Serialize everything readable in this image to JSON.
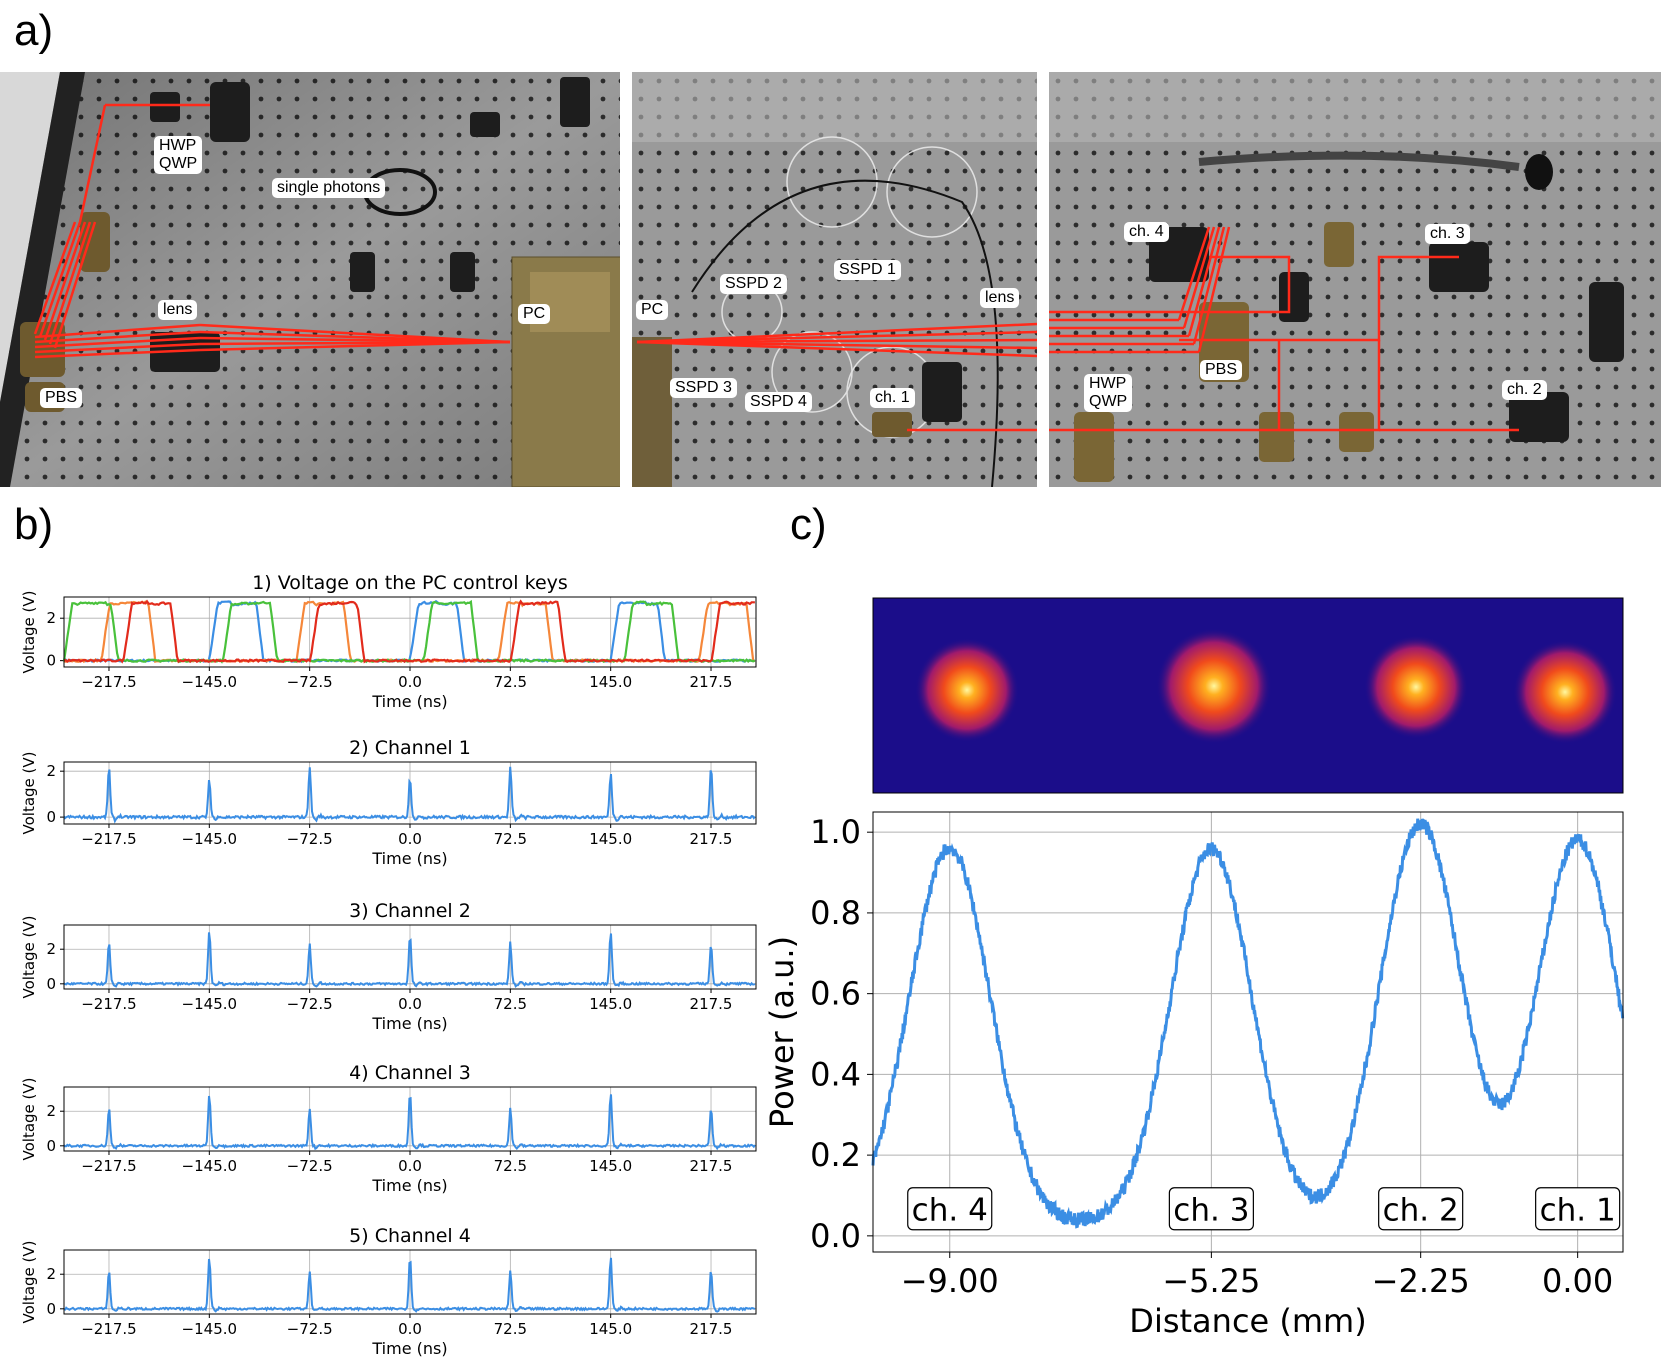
{
  "panel_a": {
    "letter": "a)",
    "labels": [
      {
        "id": "hwp-qwp-1",
        "text": "HWP\nQWP"
      },
      {
        "id": "single-photons",
        "text": "single photons"
      },
      {
        "id": "lens-1",
        "text": "lens"
      },
      {
        "id": "pc-1",
        "text": "PC"
      },
      {
        "id": "pbs-1",
        "text": "PBS"
      },
      {
        "id": "pc-2",
        "text": "PC"
      },
      {
        "id": "sspd-2",
        "text": "SSPD 2"
      },
      {
        "id": "sspd-1",
        "text": "SSPD 1"
      },
      {
        "id": "lens-2",
        "text": "lens"
      },
      {
        "id": "sspd-3",
        "text": "SSPD 3"
      },
      {
        "id": "sspd-4",
        "text": "SSPD 4"
      },
      {
        "id": "ch1-a",
        "text": "ch. 1"
      },
      {
        "id": "ch4-a",
        "text": "ch. 4"
      },
      {
        "id": "ch3-a",
        "text": "ch. 3"
      },
      {
        "id": "pbs-2",
        "text": "PBS"
      },
      {
        "id": "hwp-qwp-2",
        "text": "HWP\nQWP"
      },
      {
        "id": "ch2-a",
        "text": "ch. 2"
      }
    ]
  },
  "panel_b": {
    "letter": "b)"
  },
  "panel_c": {
    "letter": "c)"
  },
  "colors": {
    "blue": "#3b8ee4",
    "orange": "#f5873a",
    "green": "#49c13b",
    "red": "#e22b1c",
    "beam": "#ff2a1a",
    "grid": "#b0b0b0",
    "heat_bg": "#1b0d8a"
  },
  "chart_data": [
    {
      "type": "line",
      "title": "1) Voltage on the PC control keys",
      "xlabel": "Time (ns)",
      "ylabel": "Voltage (V)",
      "xlim": [
        -250,
        250
      ],
      "ylim": [
        -0.3,
        3.0
      ],
      "xticks": [
        -217.5,
        -145.0,
        -72.5,
        0.0,
        72.5,
        145.0,
        217.5
      ],
      "xtick_labels": [
        "−217.5",
        "−145.0",
        "−72.5",
        "0.0",
        "72.5",
        "145.0",
        "217.5"
      ],
      "yticks": [
        0,
        2
      ],
      "period_ns": 290,
      "pulse_width_ns": 30,
      "high_level_v": 2.8,
      "series": [
        {
          "color": "blue",
          "rise_times_ns": [
            -145,
            0,
            145
          ]
        },
        {
          "color": "orange",
          "rise_times_ns": [
            -223,
            -82,
            64,
            209
          ]
        },
        {
          "color": "green",
          "rise_times_ns": [
            -250,
            -135,
            10,
            155
          ]
        },
        {
          "color": "red",
          "rise_times_ns": [
            -207,
            -72,
            73,
            218
          ]
        }
      ]
    },
    {
      "type": "line",
      "title": "2) Channel 1",
      "xlabel": "Time (ns)",
      "ylabel": "Voltage (V)",
      "xlim": [
        -250,
        250
      ],
      "ylim": [
        -0.3,
        2.4
      ],
      "yticks": [
        0,
        2
      ],
      "xticks": [
        -217.5,
        -145.0,
        -72.5,
        0.0,
        72.5,
        145.0,
        217.5
      ],
      "xtick_labels": [
        "−217.5",
        "−145.0",
        "−72.5",
        "0.0",
        "72.5",
        "145.0",
        "217.5"
      ],
      "peaks_x": [
        -217.5,
        -145.0,
        -72.5,
        0.0,
        72.5,
        145.0,
        217.5
      ],
      "peaks_y": [
        2.2,
        1.6,
        2.2,
        1.7,
        2.2,
        1.9,
        2.2
      ]
    },
    {
      "type": "line",
      "title": "3) Channel 2",
      "xlabel": "Time (ns)",
      "ylabel": "Voltage (V)",
      "xlim": [
        -250,
        250
      ],
      "ylim": [
        -0.3,
        3.4
      ],
      "yticks": [
        0,
        2
      ],
      "xticks": [
        -217.5,
        -145.0,
        -72.5,
        0.0,
        72.5,
        145.0,
        217.5
      ],
      "xtick_labels": [
        "−217.5",
        "−145.0",
        "−72.5",
        "0.0",
        "72.5",
        "145.0",
        "217.5"
      ],
      "peaks_x": [
        -217.5,
        -145.0,
        -72.5,
        0.0,
        72.5,
        145.0,
        217.5
      ],
      "peaks_y": [
        2.4,
        3.1,
        2.3,
        2.8,
        2.4,
        3.0,
        2.3
      ]
    },
    {
      "type": "line",
      "title": "4) Channel 3",
      "xlabel": "Time (ns)",
      "ylabel": "Voltage (V)",
      "xlim": [
        -250,
        250
      ],
      "ylim": [
        -0.3,
        3.4
      ],
      "yticks": [
        0,
        2
      ],
      "xticks": [
        -217.5,
        -145.0,
        -72.5,
        0.0,
        72.5,
        145.0,
        217.5
      ],
      "xtick_labels": [
        "−217.5",
        "−145.0",
        "−72.5",
        "0.0",
        "72.5",
        "145.0",
        "217.5"
      ],
      "peaks_x": [
        -217.5,
        -145.0,
        -72.5,
        0.0,
        72.5,
        145.0,
        217.5
      ],
      "peaks_y": [
        2.2,
        3.0,
        2.2,
        3.1,
        2.2,
        3.0,
        2.2
      ]
    },
    {
      "type": "line",
      "title": "5) Channel 4",
      "xlabel": "Time (ns)",
      "ylabel": "Voltage (V)",
      "xlim": [
        -250,
        250
      ],
      "ylim": [
        -0.3,
        3.4
      ],
      "yticks": [
        0,
        2
      ],
      "xticks": [
        -217.5,
        -145.0,
        -72.5,
        0.0,
        72.5,
        145.0,
        217.5
      ],
      "xtick_labels": [
        "−217.5",
        "−145.0",
        "−72.5",
        "0.0",
        "72.5",
        "145.0",
        "217.5"
      ],
      "peaks_x": [
        -217.5,
        -145.0,
        -72.5,
        0.0,
        72.5,
        145.0,
        217.5
      ],
      "peaks_y": [
        2.2,
        3.0,
        2.2,
        3.0,
        2.2,
        3.0,
        2.2
      ]
    },
    {
      "type": "line",
      "xlabel": "Distance (mm)",
      "ylabel": "Power (a.u.)",
      "xlim": [
        -10.1,
        0.65
      ],
      "ylim": [
        -0.04,
        1.05
      ],
      "xticks": [
        -9.0,
        -5.25,
        -2.25,
        0.0
      ],
      "xtick_labels": [
        "−9.00",
        "−5.25",
        "−2.25",
        "0.00"
      ],
      "yticks": [
        0.0,
        0.2,
        0.4,
        0.6,
        0.8,
        1.0
      ],
      "ytick_labels": [
        "0.0",
        "0.2",
        "0.4",
        "0.6",
        "0.8",
        "1.0"
      ],
      "peaks": [
        {
          "label": "ch. 4",
          "x": -9.0,
          "y": 0.93
        },
        {
          "label": "ch. 3",
          "x": -5.25,
          "y": 0.93
        },
        {
          "label": "ch. 2",
          "x": -2.25,
          "y": 0.99
        },
        {
          "label": "ch. 1",
          "x": 0.0,
          "y": 0.95
        }
      ]
    }
  ]
}
